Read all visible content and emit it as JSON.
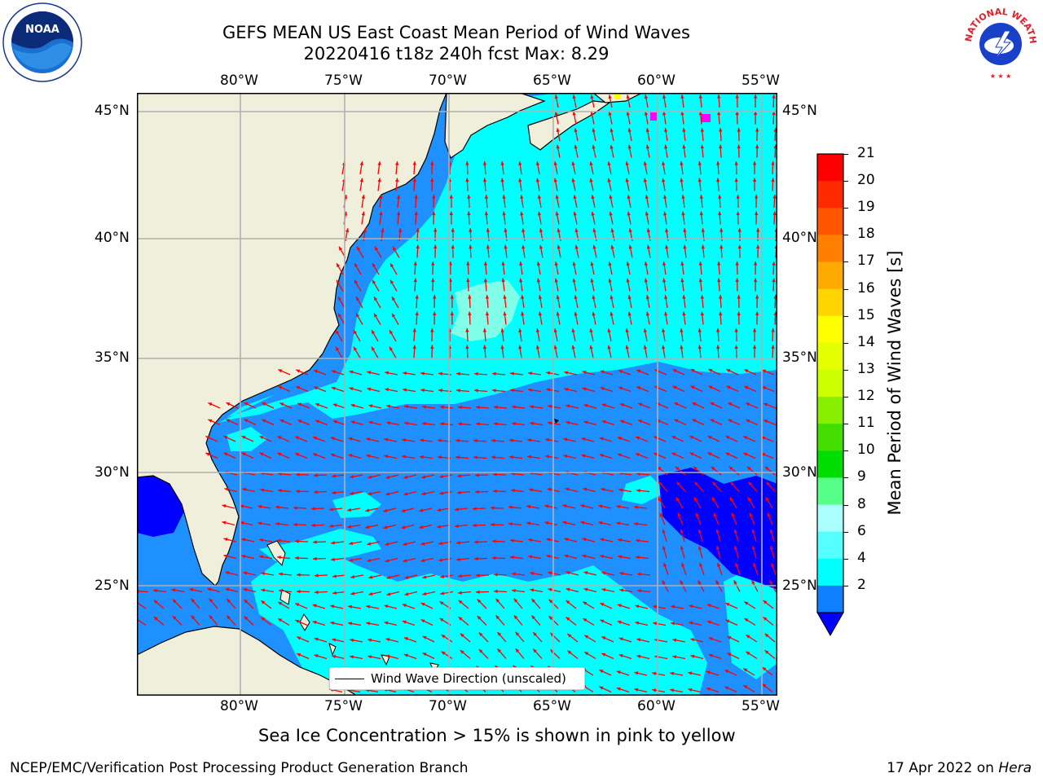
{
  "header": {
    "title_line1": "GEFS MEAN US East Coast Mean Period of Wind Waves",
    "title_line2": "20220416 t18z 240h fcst   Max: 8.29"
  },
  "logos": {
    "left": {
      "icon": "noaa-logo-icon",
      "text": "NOAA"
    },
    "right": {
      "icon": "nws-logo-icon",
      "text": "NATIONAL WEATHER SERVICE"
    }
  },
  "map": {
    "lon_labels": [
      "80°W",
      "75°W",
      "70°W",
      "65°W",
      "60°W",
      "55°W"
    ],
    "lat_labels": [
      "45°N",
      "40°N",
      "35°N",
      "30°N",
      "25°N"
    ],
    "legend": {
      "label": "Wind Wave Direction (unscaled)"
    },
    "colors": {
      "land": "#efefdc",
      "level_2_4": "#1e90ff",
      "level_4_6": "#00ffff",
      "level_6_8": "#7fffe8",
      "level_lt2": "#0000ff",
      "arrow": "#ff0000"
    }
  },
  "colorbar": {
    "label": "Mean Period of Wind Waves [s]",
    "ticks": [
      "21",
      "20",
      "19",
      "18",
      "17",
      "16",
      "15",
      "14",
      "13",
      "12",
      "11",
      "10",
      "9",
      "8",
      "6",
      "4",
      "2"
    ],
    "colors": [
      "#ff0000",
      "#ff2a00",
      "#ff5500",
      "#ff7f00",
      "#ffaa00",
      "#ffd400",
      "#ffff00",
      "#e5ff00",
      "#ccff00",
      "#88ee00",
      "#44dd00",
      "#00dd00",
      "#55ff88",
      "#aaffff",
      "#55ffff",
      "#00ffff",
      "#0f7fff"
    ],
    "under_color": "#0000ff"
  },
  "footer": {
    "note": "Sea Ice Concentration > 15% is shown in pink to yellow",
    "left": "NCEP/EMC/Verification Post Processing Product Generation Branch",
    "date": "17 Apr 2022 on",
    "machine": "Hera"
  }
}
